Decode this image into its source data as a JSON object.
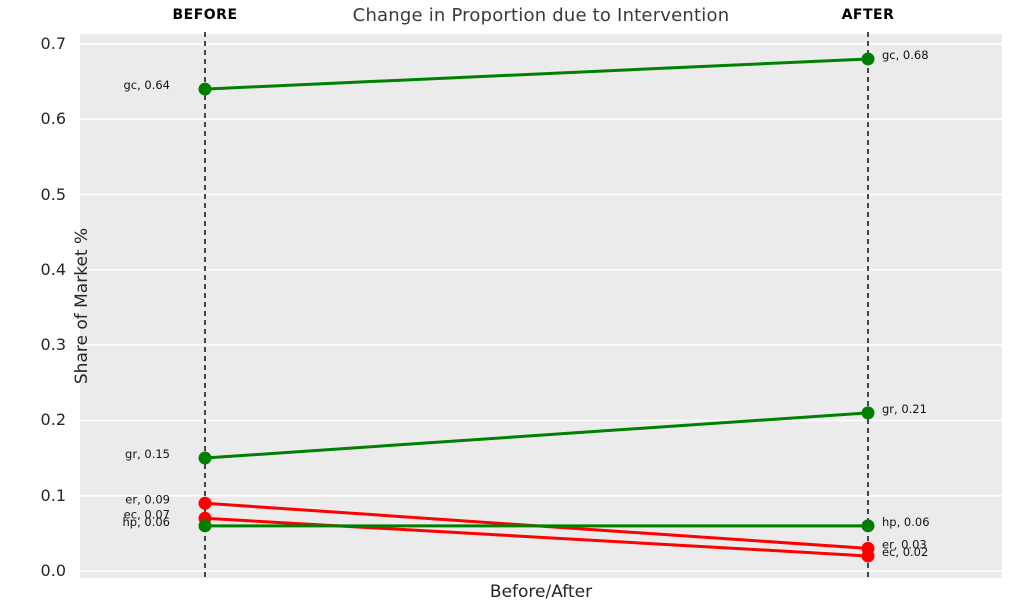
{
  "chart_data": {
    "type": "line",
    "variant": "slope-chart",
    "title": "Change in Proportion due to Intervention",
    "xlabel": "Before/After",
    "ylabel": "Share of Market %",
    "categories": [
      "BEFORE",
      "AFTER"
    ],
    "yticks": [
      0.0,
      0.1,
      0.2,
      0.3,
      0.4,
      0.5,
      0.6,
      0.7
    ],
    "ytick_labels": [
      "0.0",
      "0.1",
      "0.2",
      "0.3",
      "0.4",
      "0.5",
      "0.6",
      "0.7"
    ],
    "ylim": [
      -0.012,
      0.713
    ],
    "grid": true,
    "legend": "none",
    "colors": {
      "panel_bg": "#ebebeb",
      "figure_bg": "#ffffff",
      "gridline": "#ffffff",
      "increase": "#008000",
      "decrease": "#ff0000",
      "guide_line": "#000000",
      "label_text": "#111111"
    },
    "series": [
      {
        "name": "gc",
        "color": "#008000",
        "values": [
          0.64,
          0.68
        ],
        "labels": [
          "gc, 0.64",
          "gc, 0.68"
        ]
      },
      {
        "name": "gr",
        "color": "#008000",
        "values": [
          0.15,
          0.21
        ],
        "labels": [
          "gr, 0.15",
          "gr, 0.21"
        ]
      },
      {
        "name": "er",
        "color": "#ff0000",
        "values": [
          0.09,
          0.03
        ],
        "labels": [
          "er, 0.09",
          "er, 0.03"
        ]
      },
      {
        "name": "ec",
        "color": "#ff0000",
        "values": [
          0.07,
          0.02
        ],
        "labels": [
          "ec, 0.07",
          "ec, 0.02"
        ]
      },
      {
        "name": "hp",
        "color": "#008000",
        "values": [
          0.06,
          0.06
        ],
        "labels": [
          "hp, 0.06",
          "hp, 0.06"
        ]
      }
    ]
  }
}
